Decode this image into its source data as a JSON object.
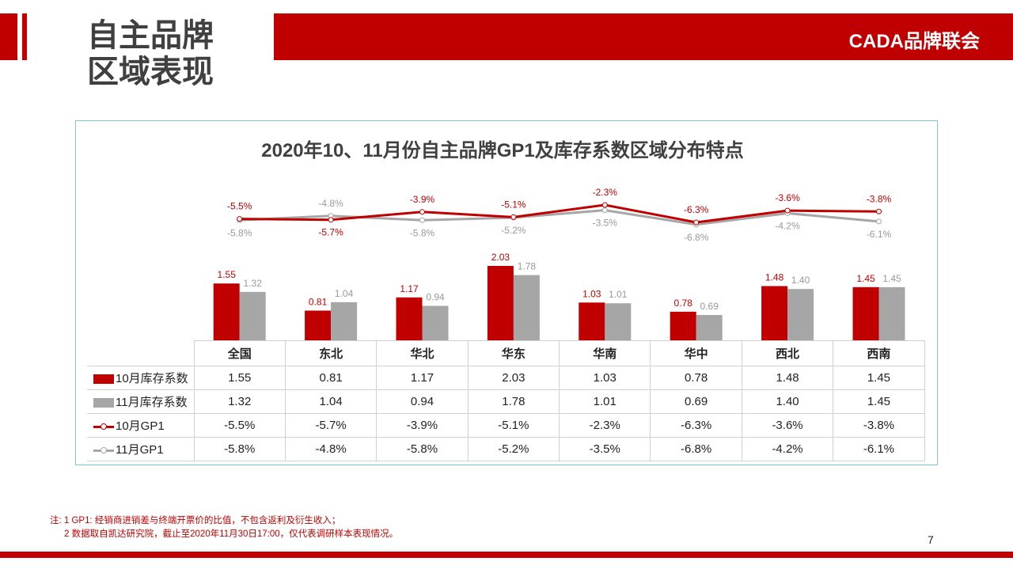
{
  "header": {
    "title_line1": "自主品牌",
    "title_line2": "区域表现",
    "brand": "CADA品牌联会"
  },
  "chart_data": {
    "type": "bar+line",
    "title": "2020年10、11月份自主品牌GP1及库存系数区域分布特点",
    "categories": [
      "全国",
      "东北",
      "华北",
      "华东",
      "华南",
      "华中",
      "西北",
      "西南"
    ],
    "series": [
      {
        "name": "10月库存系数",
        "type": "bar",
        "color": "#c00000",
        "values": [
          1.55,
          0.81,
          1.17,
          2.03,
          1.03,
          0.78,
          1.48,
          1.45
        ],
        "labels": [
          "1.55",
          "0.81",
          "1.17",
          "2.03",
          "1.03",
          "0.78",
          "1.48",
          "1.45"
        ]
      },
      {
        "name": "11月库存系数",
        "type": "bar",
        "color": "#a6a6a6",
        "values": [
          1.32,
          1.04,
          0.94,
          1.78,
          1.01,
          0.69,
          1.4,
          1.45
        ],
        "labels": [
          "1.32",
          "1.04",
          "0.94",
          "1.78",
          "1.01",
          "0.69",
          "1.40",
          "1.45"
        ]
      },
      {
        "name": "10月GP1",
        "type": "line",
        "color": "#c00000",
        "values": [
          -5.5,
          -5.7,
          -3.9,
          -5.1,
          -2.3,
          -6.3,
          -3.6,
          -3.8
        ],
        "labels": [
          "-5.5%",
          "-5.7%",
          "-3.9%",
          "-5.1%",
          "-2.3%",
          "-6.3%",
          "-3.6%",
          "-3.8%"
        ]
      },
      {
        "name": "11月GP1",
        "type": "line",
        "color": "#a6a6a6",
        "values": [
          -5.8,
          -4.8,
          -5.8,
          -5.2,
          -3.5,
          -6.8,
          -4.2,
          -6.1
        ],
        "labels": [
          "-5.8%",
          "-4.8%",
          "-5.8%",
          "-5.2%",
          "-3.5%",
          "-6.8%",
          "-4.2%",
          "-6.1%"
        ]
      }
    ],
    "legend": "data-table"
  },
  "notes": [
    "注: 1  GP1: 经销商进销差与终端开票价的比值，不包含返利及衍生收入；",
    "2 数据取自凯达研究院，截止至2020年11月30日17:00，仅代表调研样本表现情况。"
  ],
  "page_number": "7"
}
